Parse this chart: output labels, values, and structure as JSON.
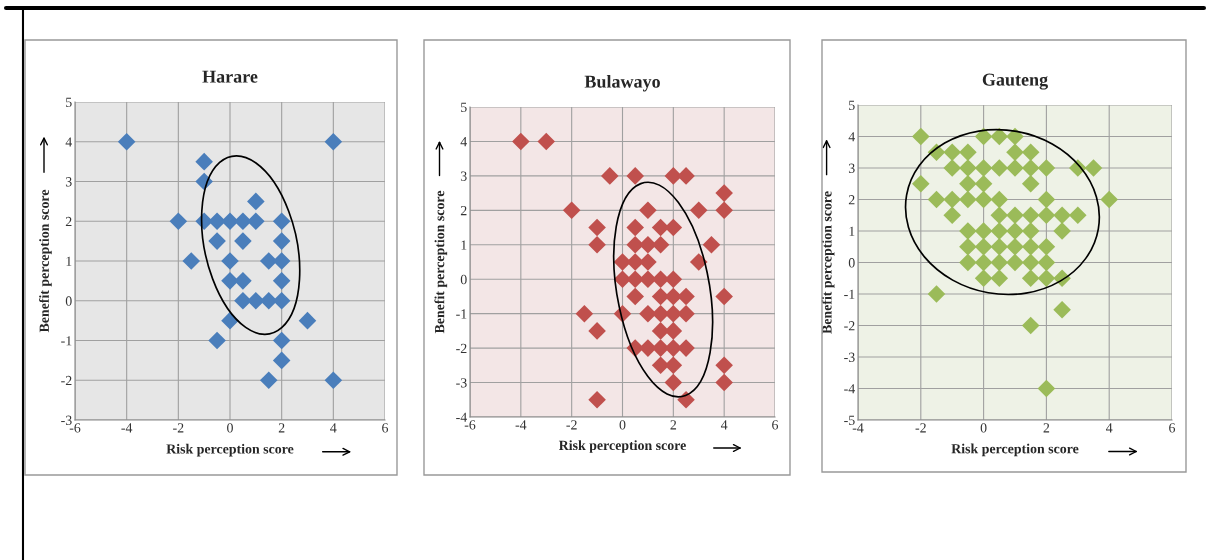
{
  "chart_data": [
    {
      "type": "scatter",
      "title": "Harare",
      "xlabel": "Risk perception score",
      "ylabel": "Benefit perception score",
      "xlim": [
        -6,
        6
      ],
      "xticks": [
        -6,
        -4,
        -2,
        0,
        2,
        4,
        6
      ],
      "ylim": [
        -3,
        5
      ],
      "yticks": [
        -3,
        -2,
        -1,
        0,
        1,
        2,
        3,
        4,
        5
      ],
      "grid": true,
      "marker": "diamond",
      "legend": false,
      "series": [
        {
          "color": "#4a7ebb",
          "x": [
            -4,
            4,
            -1,
            -1,
            1,
            -2,
            -1,
            -0.5,
            0,
            0.5,
            1,
            2,
            -0.5,
            0.5,
            2,
            -1.5,
            0,
            1.5,
            2,
            0,
            0.5,
            2,
            0.5,
            1,
            1.5,
            2,
            0,
            3,
            -0.5,
            2,
            2,
            1.5,
            4
          ],
          "values": [
            4,
            4,
            3.5,
            3,
            2.5,
            2,
            2,
            2,
            2,
            2,
            2,
            2,
            1.5,
            1.5,
            1.5,
            1,
            1,
            1,
            1,
            0.5,
            0.5,
            0.5,
            0,
            0,
            0,
            0,
            -0.5,
            -0.5,
            -1,
            -1,
            -1.5,
            -2,
            -2
          ]
        }
      ]
    },
    {
      "type": "scatter",
      "title": "Bulawayo",
      "xlabel": "Risk perception score",
      "ylabel": "Benefit perception score",
      "xlim": [
        -6,
        6
      ],
      "xticks": [
        -6,
        -4,
        -2,
        0,
        2,
        4,
        6
      ],
      "ylim": [
        -4,
        5
      ],
      "yticks": [
        -4,
        -3,
        -2,
        -1,
        0,
        1,
        2,
        3,
        4,
        5
      ],
      "grid": true,
      "marker": "diamond",
      "legend": false,
      "series": [
        {
          "color": "#c0504d",
          "x": [
            -4,
            -3,
            -0.5,
            0.5,
            2,
            2.5,
            4,
            -2,
            1,
            3,
            4,
            -1,
            0.5,
            1.5,
            2,
            -1,
            0.5,
            1,
            1.5,
            3.5,
            0,
            0.5,
            1,
            3,
            0,
            0.5,
            1,
            1.5,
            2,
            0.5,
            1.5,
            2,
            2.5,
            4,
            -1.5,
            0,
            1,
            1.5,
            2,
            2.5,
            -1,
            1.5,
            2,
            0.5,
            1,
            1.5,
            2,
            2.5,
            1.5,
            2,
            4,
            2,
            4,
            -1,
            2.5
          ],
          "values": [
            4,
            4,
            3,
            3,
            3,
            3,
            2.5,
            2,
            2,
            2,
            2,
            1.5,
            1.5,
            1.5,
            1.5,
            1,
            1,
            1,
            1,
            1,
            0.5,
            0.5,
            0.5,
            0.5,
            0,
            0,
            0,
            0,
            0,
            -0.5,
            -0.5,
            -0.5,
            -0.5,
            -0.5,
            -1,
            -1,
            -1,
            -1,
            -1,
            -1,
            -1.5,
            -1.5,
            -1.5,
            -2,
            -2,
            -2,
            -2,
            -2,
            -2.5,
            -2.5,
            -2.5,
            -3,
            -3,
            -3.5,
            -3.5
          ]
        }
      ]
    },
    {
      "type": "scatter",
      "title": "Gauteng",
      "xlabel": "Risk perception score",
      "ylabel": "Benefit perception score",
      "xlim": [
        -4,
        6
      ],
      "xticks": [
        -4,
        -2,
        0,
        2,
        4,
        6
      ],
      "ylim": [
        -5,
        5
      ],
      "yticks": [
        -5,
        -4,
        -3,
        -2,
        -1,
        0,
        1,
        2,
        3,
        4,
        5
      ],
      "grid": true,
      "marker": "diamond",
      "legend": false,
      "series": [
        {
          "color": "#9bbb59",
          "x": [
            -2,
            0,
            0.5,
            1,
            -1.5,
            -1,
            -0.5,
            1,
            1.5,
            -1,
            -0.5,
            0,
            0.5,
            1,
            1.5,
            2,
            3,
            3.5,
            -2,
            -0.5,
            0,
            1.5,
            -1.5,
            -1,
            -0.5,
            0,
            0.5,
            2,
            4,
            -1,
            0.5,
            1,
            1.5,
            2,
            2.5,
            3,
            -0.5,
            0,
            0.5,
            1,
            1.5,
            2.5,
            -0.5,
            0,
            0.5,
            1,
            1.5,
            2,
            -0.5,
            0,
            0.5,
            1,
            1.5,
            2,
            0,
            0.5,
            1.5,
            2,
            2.5,
            -1.5,
            2.5,
            1.5,
            2
          ],
          "values": [
            4,
            4,
            4,
            4,
            3.5,
            3.5,
            3.5,
            3.5,
            3.5,
            3,
            3,
            3,
            3,
            3,
            3,
            3,
            3,
            3,
            2.5,
            2.5,
            2.5,
            2.5,
            2,
            2,
            2,
            2,
            2,
            2,
            2,
            1.5,
            1.5,
            1.5,
            1.5,
            1.5,
            1.5,
            1.5,
            1,
            1,
            1,
            1,
            1,
            1,
            0.5,
            0.5,
            0.5,
            0.5,
            0.5,
            0.5,
            0,
            0,
            0,
            0,
            0,
            0,
            -0.5,
            -0.5,
            -0.5,
            -0.5,
            -0.5,
            -1,
            -1.5,
            -2,
            -4
          ]
        }
      ]
    }
  ]
}
